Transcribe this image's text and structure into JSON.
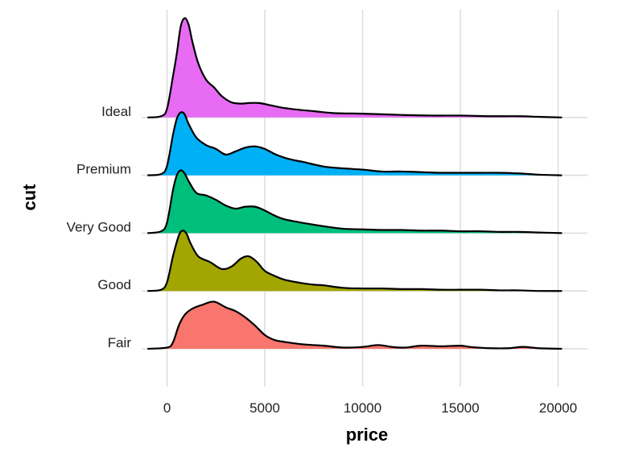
{
  "chart_data": {
    "type": "ridgeline",
    "xlabel": "price",
    "ylabel": "cut",
    "xlim": [
      -1300,
      21500
    ],
    "xticks": [
      0,
      5000,
      10000,
      15000,
      20000
    ],
    "xtick_labels": [
      "0",
      "5000",
      "10000",
      "15000",
      "20000"
    ],
    "grid": true,
    "legend": "none",
    "categories": [
      "Fair",
      "Good",
      "Very Good",
      "Premium",
      "Ideal"
    ],
    "series": [
      {
        "name": "Fair",
        "color": "#F8766D",
        "x": [
          -1000,
          0,
          300,
          600,
          900,
          1300,
          1800,
          2400,
          3000,
          3500,
          4000,
          4500,
          5000,
          5500,
          6000,
          7000,
          8000,
          9000,
          10000,
          10800,
          11500,
          12200,
          13000,
          14000,
          15000,
          15500,
          16500,
          17500,
          18200,
          19000,
          20200
        ],
        "y": [
          0,
          0.02,
          0.1,
          0.37,
          0.54,
          0.64,
          0.7,
          0.75,
          0.66,
          0.6,
          0.5,
          0.37,
          0.22,
          0.14,
          0.11,
          0.07,
          0.05,
          0.02,
          0.03,
          0.06,
          0.03,
          0.02,
          0.05,
          0.04,
          0.05,
          0.03,
          0.01,
          0.01,
          0.03,
          0.01,
          0
        ]
      },
      {
        "name": "Good",
        "color": "#A3A500",
        "x": [
          -1000,
          -300,
          0,
          300,
          600,
          800,
          1000,
          1200,
          1600,
          2200,
          2800,
          3300,
          3800,
          4200,
          4600,
          5000,
          5500,
          6000,
          6800,
          7500,
          8000,
          9000,
          10000,
          11000,
          12000,
          13000,
          14000,
          15000,
          16000,
          17000,
          18000,
          19000,
          20200
        ],
        "y": [
          0,
          0.02,
          0.14,
          0.55,
          0.88,
          0.96,
          0.91,
          0.76,
          0.55,
          0.46,
          0.35,
          0.39,
          0.52,
          0.55,
          0.46,
          0.32,
          0.24,
          0.18,
          0.13,
          0.1,
          0.09,
          0.05,
          0.04,
          0.04,
          0.03,
          0.03,
          0.02,
          0.02,
          0.02,
          0.01,
          0.01,
          0,
          0
        ]
      },
      {
        "name": "Very Good",
        "color": "#00BF7D",
        "x": [
          -1000,
          -300,
          0,
          300,
          500,
          700,
          900,
          1100,
          1500,
          2000,
          2500,
          3000,
          3500,
          4000,
          4500,
          5000,
          5500,
          6000,
          7000,
          8000,
          9000,
          10000,
          11000,
          12000,
          13000,
          14000,
          15000,
          16000,
          17000,
          18000,
          19000,
          20200
        ],
        "y": [
          0,
          0.03,
          0.17,
          0.68,
          0.92,
          1.0,
          0.95,
          0.83,
          0.64,
          0.6,
          0.53,
          0.44,
          0.39,
          0.42,
          0.42,
          0.36,
          0.28,
          0.22,
          0.16,
          0.11,
          0.07,
          0.06,
          0.05,
          0.05,
          0.04,
          0.04,
          0.03,
          0.03,
          0.02,
          0.02,
          0.01,
          0
        ]
      },
      {
        "name": "Premium",
        "color": "#00B0F6",
        "x": [
          -1000,
          -300,
          0,
          300,
          500,
          700,
          900,
          1100,
          1500,
          2000,
          2500,
          3000,
          3500,
          4000,
          4500,
          5000,
          5500,
          6000,
          6500,
          7000,
          8000,
          9000,
          10000,
          11000,
          12000,
          13000,
          14000,
          15000,
          16000,
          17000,
          18000,
          19000,
          20200
        ],
        "y": [
          0,
          0.02,
          0.15,
          0.64,
          0.9,
          1.0,
          0.97,
          0.82,
          0.6,
          0.48,
          0.42,
          0.33,
          0.38,
          0.44,
          0.46,
          0.42,
          0.34,
          0.28,
          0.24,
          0.21,
          0.14,
          0.11,
          0.09,
          0.06,
          0.06,
          0.05,
          0.04,
          0.04,
          0.04,
          0.04,
          0.03,
          0.01,
          0
        ]
      },
      {
        "name": "Ideal",
        "color": "#E76BF3",
        "x": [
          -1000,
          -300,
          0,
          300,
          500,
          700,
          900,
          1100,
          1300,
          1600,
          2000,
          2400,
          2800,
          3300,
          3800,
          4200,
          4700,
          5200,
          5800,
          6500,
          7500,
          8500,
          10000,
          11000,
          12000,
          13500,
          15000,
          16500,
          18000,
          19000,
          20200
        ],
        "y": [
          0,
          0.02,
          0.14,
          0.65,
          1.02,
          1.45,
          1.58,
          1.48,
          1.2,
          0.86,
          0.6,
          0.48,
          0.34,
          0.24,
          0.22,
          0.23,
          0.23,
          0.2,
          0.16,
          0.13,
          0.1,
          0.07,
          0.06,
          0.05,
          0.04,
          0.03,
          0.03,
          0.02,
          0.02,
          0.01,
          0
        ]
      }
    ]
  }
}
